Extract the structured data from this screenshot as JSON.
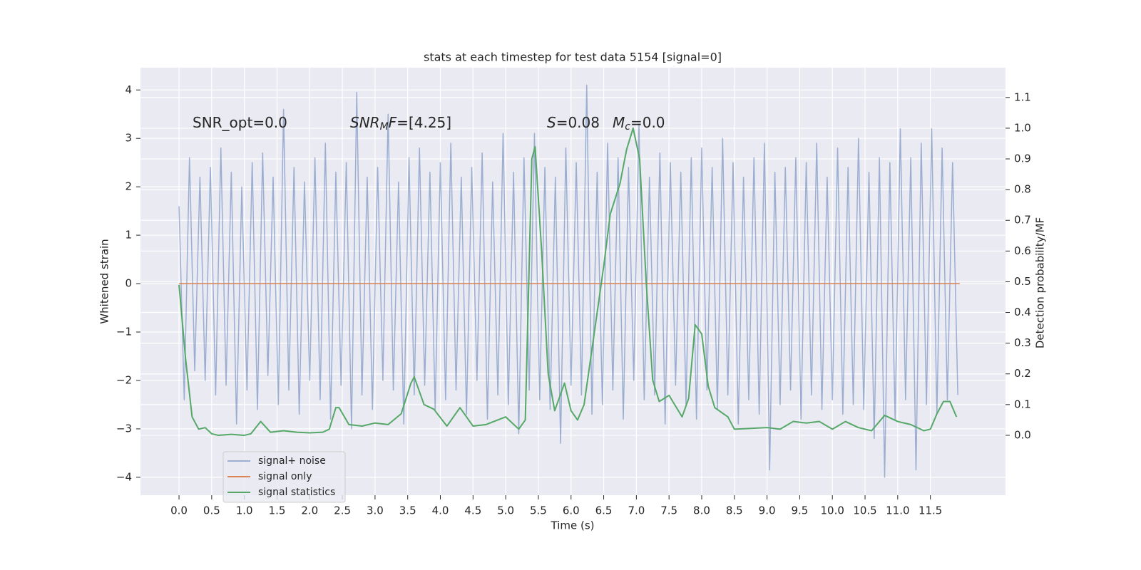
{
  "chart_data": {
    "type": "line",
    "title": "stats at each timestep for test data 5154 [signal=0]",
    "xlabel": "Time (s)",
    "ylabel": "Whitened strain",
    "y2label": "Detection probability/MF",
    "xlim": [
      -0.59,
      12.65
    ],
    "ylim": [
      -4.37,
      4.46
    ],
    "y2lim": [
      -0.195,
      1.197
    ],
    "xticks": [
      {
        "value": 0,
        "label": "0.0"
      },
      0.5,
      {
        "value": 1,
        "label": "1.0"
      },
      1.5,
      {
        "value": 2,
        "label": "2.0"
      },
      2.5,
      {
        "value": 3,
        "label": "3.0"
      },
      3.5,
      {
        "value": 4,
        "label": "4.0"
      },
      4.5,
      {
        "value": 5,
        "label": "5.0"
      },
      5.5,
      {
        "value": 6,
        "label": "6.0"
      },
      6.5,
      {
        "value": 7,
        "label": "7.0"
      },
      7.5,
      {
        "value": 8,
        "label": "8.0"
      },
      8.5,
      {
        "value": 9,
        "label": "9.0"
      },
      9.5,
      {
        "value": 10,
        "label": "10.0"
      },
      10.5,
      {
        "value": 11,
        "label": "11.0"
      },
      11.5
    ],
    "yticks": [
      {
        "value": -4,
        "label": "−4"
      },
      {
        "value": -3,
        "label": "−3"
      },
      {
        "value": -2,
        "label": "−2"
      },
      {
        "value": -1,
        "label": "−1"
      },
      0,
      1,
      2,
      3,
      4
    ],
    "y2ticks": [
      {
        "value": 0,
        "label": "0.0"
      },
      0.1,
      0.2,
      0.3,
      0.4,
      0.5,
      0.6,
      0.7,
      0.8,
      0.9,
      {
        "value": 1,
        "label": "1.0"
      },
      1.1
    ],
    "grid": true,
    "legend": "lower left",
    "annotations": [
      {
        "parts": [
          {
            "t": "SNR_opt=0.0"
          }
        ]
      },
      {
        "parts": [
          {
            "t": "SNR",
            "italic": true
          },
          {
            "t": "M",
            "sub": true,
            "italic": true
          },
          {
            "t": "F",
            "italic": true
          },
          {
            "t": "=[4.25]"
          }
        ]
      },
      {
        "parts": [
          {
            "t": "S",
            "italic": true
          },
          {
            "t": "=0.08"
          }
        ]
      },
      {
        "parts": [
          {
            "t": "M",
            "italic": true
          },
          {
            "t": "c",
            "sub": true,
            "italic": true
          },
          {
            "t": "=0.0"
          }
        ]
      }
    ],
    "series": [
      {
        "name": "signal+ noise",
        "color": "#4c72b0",
        "opacity": 0.5,
        "x": [
          0,
          0.08,
          0.16,
          0.24,
          0.32,
          0.4,
          0.48,
          0.56,
          0.64,
          0.72,
          0.8,
          0.88,
          0.96,
          1.04,
          1.12,
          1.2,
          1.28,
          1.36,
          1.44,
          1.52,
          1.6,
          1.68,
          1.76,
          1.84,
          1.92,
          2,
          2.08,
          2.16,
          2.24,
          2.32,
          2.4,
          2.48,
          2.56,
          2.64,
          2.72,
          2.8,
          2.88,
          2.96,
          3.04,
          3.12,
          3.2,
          3.28,
          3.36,
          3.44,
          3.52,
          3.6,
          3.68,
          3.76,
          3.84,
          3.92,
          4,
          4.08,
          4.16,
          4.24,
          4.32,
          4.4,
          4.48,
          4.56,
          4.64,
          4.72,
          4.8,
          4.88,
          4.96,
          5.04,
          5.12,
          5.2,
          5.28,
          5.36,
          5.44,
          5.52,
          5.6,
          5.68,
          5.76,
          5.84,
          5.92,
          6,
          6.08,
          6.16,
          6.24,
          6.32,
          6.4,
          6.48,
          6.56,
          6.64,
          6.72,
          6.8,
          6.88,
          6.96,
          7.04,
          7.12,
          7.2,
          7.28,
          7.36,
          7.44,
          7.52,
          7.6,
          7.68,
          7.76,
          7.84,
          7.92,
          8,
          8.08,
          8.16,
          8.24,
          8.32,
          8.4,
          8.48,
          8.56,
          8.64,
          8.72,
          8.8,
          8.88,
          8.96,
          9.04,
          9.12,
          9.2,
          9.28,
          9.36,
          9.44,
          9.52,
          9.6,
          9.68,
          9.76,
          9.84,
          9.92,
          10,
          10.08,
          10.16,
          10.24,
          10.32,
          10.4,
          10.48,
          10.56,
          10.64,
          10.72,
          10.8,
          10.88,
          10.96,
          11.04,
          11.12,
          11.2,
          11.28,
          11.36,
          11.44,
          11.52,
          11.6,
          11.68,
          11.76,
          11.84,
          11.92
        ],
        "values": [
          1.6,
          -2.4,
          2.6,
          -1.8,
          2.2,
          -2.0,
          2.4,
          -2.3,
          2.8,
          -2.1,
          2.3,
          -2.9,
          2.0,
          -2.2,
          2.5,
          -2.6,
          2.7,
          -1.9,
          2.2,
          -2.5,
          3.6,
          -2.2,
          2.4,
          -2.7,
          2.1,
          -2.0,
          2.6,
          -2.4,
          2.9,
          -2.8,
          2.3,
          -2.1,
          2.5,
          -3.0,
          3.95,
          -2.3,
          2.2,
          -2.6,
          2.4,
          -2.0,
          3.5,
          -2.2,
          2.1,
          -2.9,
          2.6,
          -2.3,
          2.8,
          -2.1,
          2.3,
          -2.6,
          2.5,
          -2.4,
          2.9,
          -2.2,
          2.2,
          -2.7,
          2.4,
          -2.0,
          2.7,
          -2.8,
          2.1,
          -2.3,
          3.1,
          -2.5,
          2.3,
          -3.1,
          2.6,
          -2.2,
          3.1,
          -2.4,
          2.4,
          -2.6,
          2.2,
          -3.3,
          2.8,
          -2.1,
          2.5,
          -2.3,
          4.1,
          -2.7,
          2.3,
          -2.5,
          2.9,
          -2.2,
          2.6,
          -2.8,
          2.4,
          -2.0,
          3.3,
          -2.4,
          2.2,
          -2.3,
          2.7,
          -2.9,
          2.5,
          -2.1,
          2.3,
          -2.5,
          2.6,
          -2.8,
          2.8,
          -2.2,
          2.4,
          -2.6,
          3.0,
          -2.3,
          2.5,
          -2.9,
          2.2,
          -2.4,
          2.6,
          -2.7,
          2.9,
          -3.85,
          2.3,
          -2.5,
          2.4,
          -2.2,
          2.6,
          -2.8,
          2.5,
          -2.3,
          2.9,
          -2.6,
          2.2,
          -2.4,
          2.8,
          -2.7,
          2.4,
          -2.5,
          3.0,
          -2.6,
          2.3,
          -3.2,
          2.6,
          -4.0,
          2.5,
          -2.8,
          3.2,
          -2.4,
          2.6,
          -3.85,
          2.9,
          -2.5,
          3.2,
          -2.7,
          2.8,
          -2.4,
          2.5,
          -2.3
        ]
      },
      {
        "name": "signal only",
        "color": "#dd8452",
        "opacity": 1,
        "x": [
          0,
          11.95
        ],
        "values": [
          0,
          0
        ]
      },
      {
        "name": "signal statistics",
        "color": "#55a868",
        "opacity": 1,
        "axis": "y2",
        "x": [
          0,
          0.1,
          0.2,
          0.3,
          0.4,
          0.5,
          0.6,
          0.8,
          1.0,
          1.1,
          1.25,
          1.4,
          1.6,
          1.8,
          2.0,
          2.2,
          2.3,
          2.4,
          2.45,
          2.6,
          2.8,
          3.0,
          3.2,
          3.4,
          3.55,
          3.6,
          3.75,
          3.9,
          4.1,
          4.3,
          4.5,
          4.7,
          5.0,
          5.2,
          5.3,
          5.4,
          5.45,
          5.55,
          5.65,
          5.75,
          5.9,
          6.0,
          6.1,
          6.2,
          6.3,
          6.5,
          6.6,
          6.75,
          6.85,
          6.95,
          7.05,
          7.15,
          7.25,
          7.35,
          7.5,
          7.7,
          7.8,
          7.9,
          8.0,
          8.1,
          8.2,
          8.4,
          8.5,
          9.0,
          9.2,
          9.4,
          9.6,
          9.8,
          10.0,
          10.2,
          10.4,
          10.6,
          10.8,
          11.0,
          11.2,
          11.4,
          11.5,
          11.6,
          11.7,
          11.8,
          11.9
        ],
        "values": [
          0.49,
          0.25,
          0.06,
          0.02,
          0.025,
          0.005,
          0.0,
          0.003,
          0.0,
          0.005,
          0.045,
          0.01,
          0.015,
          0.01,
          0.008,
          0.01,
          0.02,
          0.09,
          0.09,
          0.035,
          0.03,
          0.04,
          0.035,
          0.07,
          0.17,
          0.19,
          0.1,
          0.085,
          0.03,
          0.09,
          0.03,
          0.035,
          0.06,
          0.02,
          0.05,
          0.9,
          0.94,
          0.6,
          0.2,
          0.08,
          0.17,
          0.08,
          0.05,
          0.1,
          0.25,
          0.55,
          0.72,
          0.82,
          0.93,
          1.0,
          0.9,
          0.5,
          0.18,
          0.11,
          0.13,
          0.06,
          0.12,
          0.36,
          0.33,
          0.16,
          0.09,
          0.06,
          0.02,
          0.025,
          0.02,
          0.045,
          0.04,
          0.045,
          0.02,
          0.045,
          0.025,
          0.015,
          0.065,
          0.045,
          0.035,
          0.015,
          0.02,
          0.07,
          0.11,
          0.11,
          0.06
        ]
      }
    ]
  }
}
